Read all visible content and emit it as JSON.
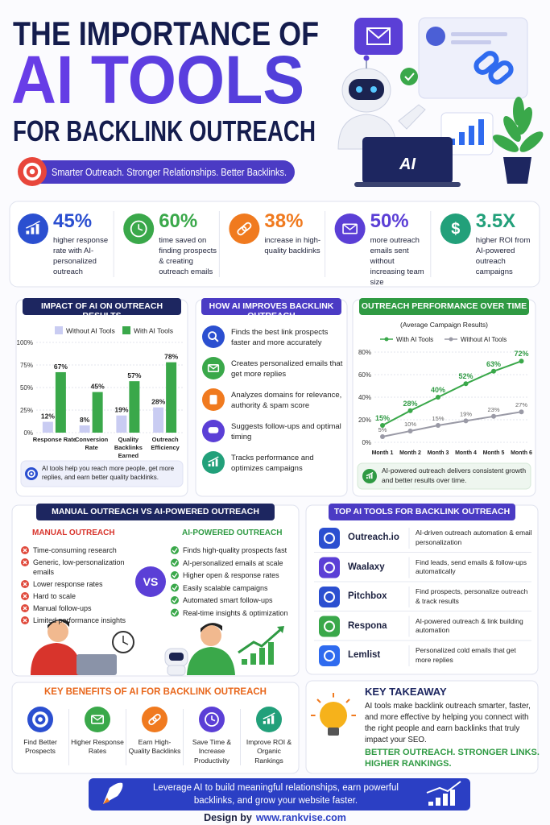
{
  "header": {
    "title_line1": "THE IMPORTANCE OF",
    "title_line2": "AI TOOLS",
    "title_line3": "FOR BACKLINK OUTREACH",
    "tagline": "Smarter Outreach. Stronger Relationships. Better Backlinks.",
    "laptop_label": "AI"
  },
  "stats": [
    {
      "value": "45%",
      "text": "higher response rate with AI-personalized outreach"
    },
    {
      "value": "60%",
      "text": "time saved on finding prospects & creating outreach emails"
    },
    {
      "value": "38%",
      "text": "increase in high-quality backlinks"
    },
    {
      "value": "50%",
      "text": "more outreach emails sent without increasing team size"
    },
    {
      "value": "3.5X",
      "text": "higher ROI from AI-powered outreach campaigns"
    }
  ],
  "impact_chart": {
    "type": "bar",
    "title": "IMPACT OF AI ON OUTREACH RESULTS",
    "categories": [
      "Response Rate",
      "Conversion Rate",
      "Quality Backlinks Earned",
      "Outreach Efficiency"
    ],
    "series": [
      {
        "name": "Without AI Tools",
        "color": "#c9ccf2",
        "values": [
          12,
          8,
          19,
          28
        ],
        "value_labels": [
          "12%",
          "8%",
          "19%",
          "28%"
        ]
      },
      {
        "name": "With AI Tools",
        "color": "#3aa84a",
        "values": [
          67,
          45,
          57,
          78
        ],
        "value_labels": [
          "67%",
          "45%",
          "57%",
          "78%"
        ]
      }
    ],
    "ylim": [
      0,
      100
    ],
    "yticks": [
      {
        "value": 0,
        "label": "0%"
      },
      {
        "value": 25,
        "label": "25%"
      },
      {
        "value": 50,
        "label": "50%"
      },
      {
        "value": 75,
        "label": "75%"
      },
      {
        "value": 100,
        "label": "100%"
      }
    ],
    "note": "AI tools help you reach more people, get more replies, and earn better quality backlinks."
  },
  "improvements": {
    "title": "HOW AI IMPROVES BACKLINK OUTREACH",
    "items": [
      "Finds the best link prospects faster and more accurately",
      "Creates personalized emails that get more replies",
      "Analyzes domains for relevance, authority & spam score",
      "Suggests follow-ups and optimal timing",
      "Tracks performance and optimizes campaigns"
    ]
  },
  "performance_chart": {
    "type": "line",
    "title": "OUTREACH PERFORMANCE OVER TIME",
    "subtitle": "(Average Campaign Results)",
    "categories": [
      "Month 1",
      "Month 2",
      "Month 3",
      "Month 4",
      "Month 5",
      "Month 6"
    ],
    "series": [
      {
        "name": "With AI Tools",
        "color": "#3aa84a",
        "values": [
          15,
          28,
          40,
          52,
          63,
          72
        ],
        "value_labels": [
          "15%",
          "28%",
          "40%",
          "52%",
          "63%",
          "72%"
        ]
      },
      {
        "name": "Without AI Tools",
        "color": "#9a9aa6",
        "values": [
          5,
          10,
          15,
          19,
          23,
          27
        ],
        "value_labels": [
          "5%",
          "10%",
          "15%",
          "19%",
          "23%",
          "27%"
        ]
      }
    ],
    "ylim": [
      0,
      80
    ],
    "yticks": [
      {
        "value": 0,
        "label": "0%"
      },
      {
        "value": 20,
        "label": "20%"
      },
      {
        "value": 40,
        "label": "40%"
      },
      {
        "value": 60,
        "label": "60%"
      },
      {
        "value": 80,
        "label": "80%"
      }
    ],
    "note": "AI-powered outreach delivers consistent growth and better results over time."
  },
  "comparison": {
    "title": "MANUAL OUTREACH VS AI-POWERED OUTREACH",
    "vs": "VS",
    "manual": {
      "heading": "MANUAL OUTREACH",
      "items": [
        "Time-consuming research",
        "Generic, low-personalization emails",
        "Lower response rates",
        "Hard to scale",
        "Manual follow-ups",
        "Limited performance insights"
      ]
    },
    "ai": {
      "heading": "AI-POWERED OUTREACH",
      "items": [
        "Finds high-quality prospects fast",
        "AI-personalized emails at scale",
        "Higher open & response rates",
        "Easily scalable campaigns",
        "Automated smart follow-ups",
        "Real-time insights & optimization"
      ]
    }
  },
  "tools": {
    "title": "TOP AI TOOLS FOR BACKLINK OUTREACH",
    "items": [
      {
        "name": "Outreach.io",
        "description": "AI-driven outreach automation & email personalization"
      },
      {
        "name": "Waalaxy",
        "description": "Find leads, send emails & follow-ups automatically"
      },
      {
        "name": "Pitchbox",
        "description": "Find prospects, personalize outreach & track results"
      },
      {
        "name": "Respona",
        "description": "AI-powered outreach & link building automation"
      },
      {
        "name": "Lemlist",
        "description": "Personalized cold emails that get more replies"
      }
    ]
  },
  "benefits": {
    "title": "KEY BENEFITS OF AI FOR BACKLINK OUTREACH",
    "items": [
      "Find Better Prospects",
      "Higher Response Rates",
      "Earn High-Quality Backlinks",
      "Save Time & Increase Productivity",
      "Improve ROI & Organic Rankings"
    ]
  },
  "takeaway": {
    "title": "KEY TAKEAWAY",
    "text": "AI tools make backlink outreach smarter, faster, and more effective by helping you connect with the right people and earn backlinks that truly impact your SEO.",
    "highlight_line1": "BETTER OUTREACH. STRONGER LINKS.",
    "highlight_line2": "HIGHER RANKINGS."
  },
  "footer": {
    "banner": "Leverage AI to build meaningful relationships, earn powerful backlinks, and grow your website faster.",
    "credit_prefix": "Design by",
    "credit_site": "www.rankvise.com"
  }
}
